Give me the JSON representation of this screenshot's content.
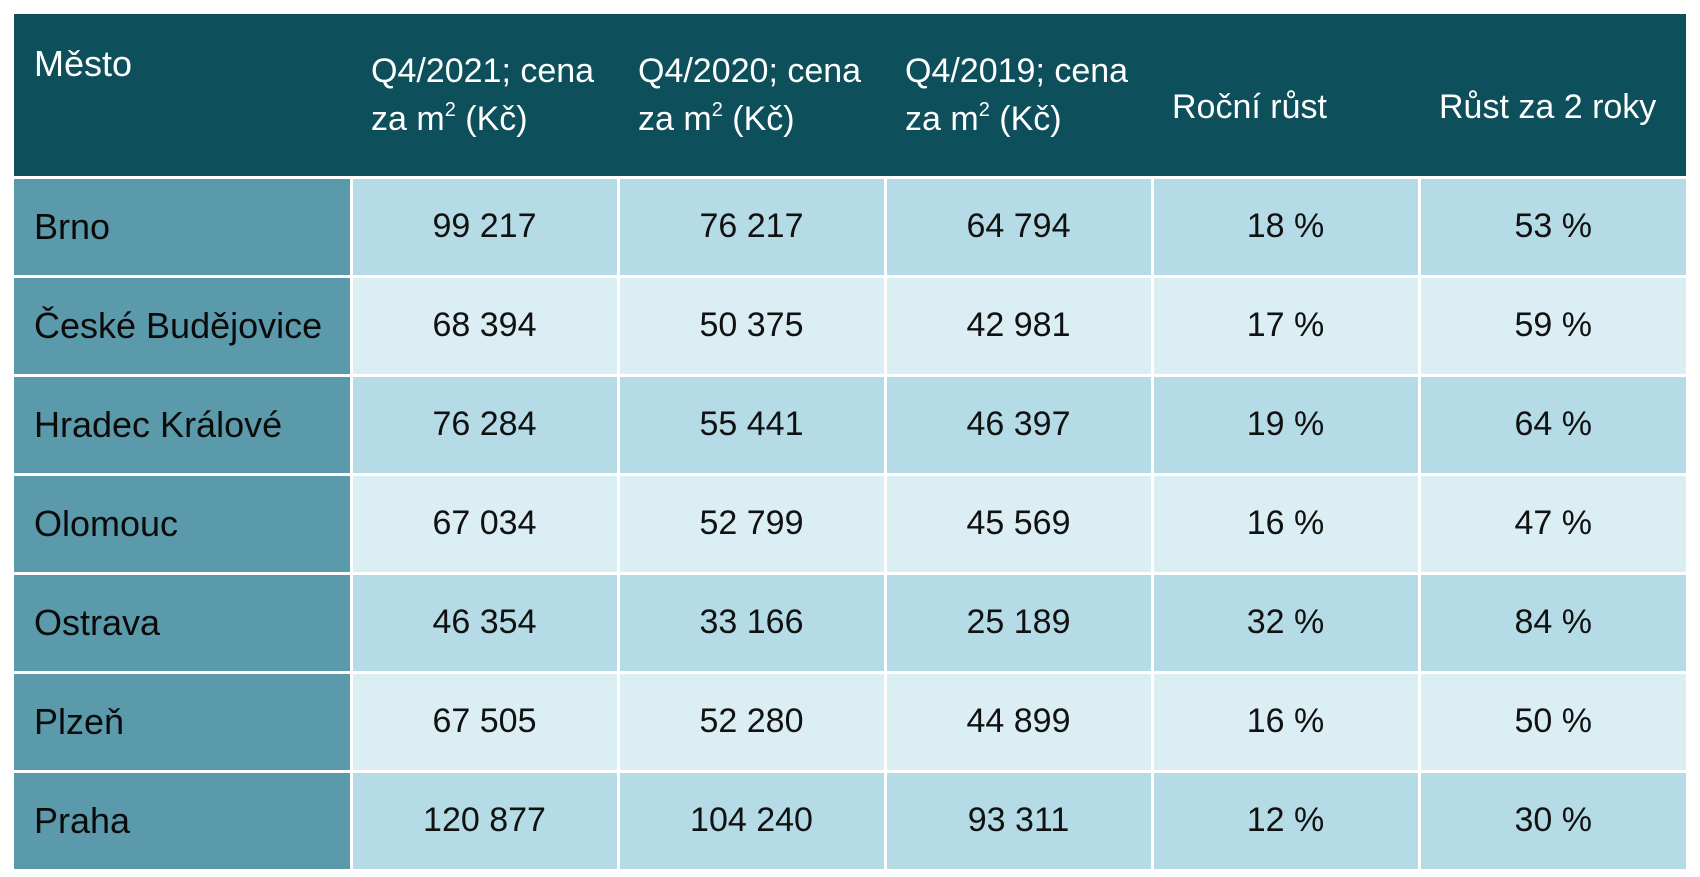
{
  "table": {
    "headers": {
      "city": "Město",
      "q4_2021_line1": "Q4/2021; cena",
      "q4_2020_line1": "Q4/2020; cena",
      "q4_2019_line1": "Q4/2019; cena",
      "price_line2_pre": "za m",
      "price_line2_sup": "2",
      "price_line2_post": " (Kč)",
      "annual_growth": "Roční růst",
      "growth_2y": "Růst za 2 roky"
    },
    "rows": [
      {
        "city": "Brno",
        "q4_2021": "99 217",
        "q4_2020": "76 217",
        "q4_2019": "64 794",
        "annual_growth": "18 %",
        "growth_2y": "53 %"
      },
      {
        "city": "České Budějovice",
        "q4_2021": "68 394",
        "q4_2020": "50 375",
        "q4_2019": "42 981",
        "annual_growth": "17 %",
        "growth_2y": "59 %"
      },
      {
        "city": "Hradec Králové",
        "q4_2021": "76 284",
        "q4_2020": "55 441",
        "q4_2019": "46 397",
        "annual_growth": "19 %",
        "growth_2y": "64 %"
      },
      {
        "city": "Olomouc",
        "q4_2021": "67 034",
        "q4_2020": "52 799",
        "q4_2019": "45 569",
        "annual_growth": "16 %",
        "growth_2y": "47 %"
      },
      {
        "city": "Ostrava",
        "q4_2021": "46 354",
        "q4_2020": "33 166",
        "q4_2019": "25 189",
        "annual_growth": "32 %",
        "growth_2y": "84 %"
      },
      {
        "city": "Plzeň",
        "q4_2021": "67 505",
        "q4_2020": "52 280",
        "q4_2019": "44 899",
        "annual_growth": "16 %",
        "growth_2y": "50 %"
      },
      {
        "city": "Praha",
        "q4_2021": "120 877",
        "q4_2020": "104 240",
        "q4_2019": "93 311",
        "annual_growth": "12 %",
        "growth_2y": "30 %"
      }
    ]
  },
  "colors": {
    "header_bg": "#0d4f5a",
    "city_cell_bg": "#5a9aab",
    "row_dark_bg": "#b5dce6",
    "row_light_bg": "#daeef3"
  }
}
